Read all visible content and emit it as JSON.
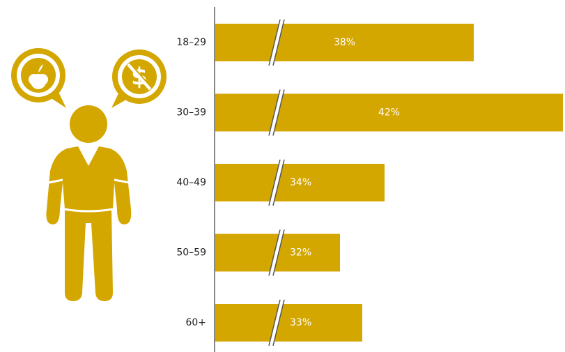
{
  "chart_data": {
    "type": "bar",
    "orientation": "horizontal",
    "axis_break": true,
    "categories": [
      "18–29",
      "30–39",
      "40–49",
      "50–59",
      "60+"
    ],
    "values": [
      38,
      42,
      34,
      32,
      33
    ],
    "value_labels": [
      "38%",
      "42%",
      "34%",
      "32%",
      "33%"
    ],
    "color": "#d4a600"
  }
}
